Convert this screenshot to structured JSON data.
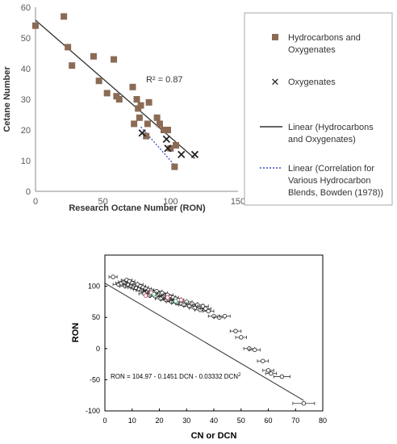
{
  "chart_data": [
    {
      "type": "scatter",
      "xlabel": "Research Octane Number (RON)",
      "ylabel": "Cetane Number",
      "xlim": [
        0,
        150
      ],
      "ylim": [
        0,
        60
      ],
      "xticks": [
        "0",
        "50",
        "100",
        "150"
      ],
      "yticks": [
        "0",
        "10",
        "20",
        "30",
        "40",
        "50",
        "60"
      ],
      "grid": false,
      "legend_position": "right",
      "annotation": "R² = 0.87",
      "series": [
        {
          "name": "Hydrocarbons and Oxygenates",
          "marker": "square",
          "color": "#8B6B55",
          "x": [
            0,
            21,
            24,
            27,
            43,
            47,
            53,
            58,
            60,
            62,
            72,
            73,
            75,
            76,
            77,
            78,
            82,
            83,
            84,
            90,
            92,
            95,
            98,
            100,
            103,
            104
          ],
          "y": [
            54,
            57,
            47,
            41,
            44,
            36,
            32,
            43,
            31,
            30,
            34,
            22,
            30,
            27,
            24,
            28,
            18,
            22,
            29,
            24,
            22,
            20,
            20,
            14,
            8,
            15
          ]
        },
        {
          "name": "Oxygenates",
          "marker": "x",
          "color": "#222222",
          "x": [
            79,
            97,
            98,
            108,
            118
          ],
          "y": [
            19,
            17,
            14,
            12,
            12
          ]
        },
        {
          "name": "Linear (Hydrocarbons and Oxygenates)",
          "type": "line",
          "color": "#333333",
          "x": [
            0,
            118
          ],
          "y": [
            55.8,
            10.7
          ]
        },
        {
          "name": "Linear (Correlation for Various Hydrocarbon Blends, Bowden (1978))",
          "type": "line",
          "style": "dotted",
          "color": "#3B4FC2",
          "x": [
            78,
            103
          ],
          "y": [
            21,
            8.5
          ]
        }
      ]
    },
    {
      "type": "scatter",
      "xlabel": "CN or DCN",
      "ylabel": "RON",
      "xlim": [
        0,
        80
      ],
      "ylim": [
        -100,
        150
      ],
      "xticks": [
        "0",
        "10",
        "20",
        "30",
        "40",
        "50",
        "60",
        "70",
        "80"
      ],
      "yticks": [
        "-100",
        "-50",
        "0",
        "50",
        "100"
      ],
      "grid": false,
      "annotation_text": "RON = 104.97 - 0.1451 DCN - 0.03332 DCN",
      "annotation_superscript": "2",
      "series": [
        {
          "marker": "open-circle",
          "color": "#333333",
          "x": [
            3,
            5,
            6,
            7,
            7.5,
            8,
            8.5,
            9,
            9.5,
            10,
            10.5,
            11,
            11.5,
            12,
            12.5,
            13,
            13.5,
            14,
            14.5,
            15,
            15.5,
            16,
            16.5,
            17,
            17.5,
            18,
            18.5,
            19,
            19.5,
            20,
            20.5,
            21,
            21.5,
            22,
            22.5,
            23,
            23.5,
            24,
            24.5,
            25,
            25.5,
            26,
            26.5,
            27,
            28,
            29,
            30,
            31,
            32,
            33,
            34,
            35,
            36,
            37,
            38,
            40,
            42,
            44,
            48,
            50,
            53,
            55,
            58,
            60,
            61,
            65,
            73
          ],
          "y": [
            115,
            103,
            105,
            107,
            100,
            110,
            103,
            108,
            100,
            105,
            98,
            102,
            97,
            103,
            95,
            100,
            93,
            98,
            88,
            96,
            92,
            94,
            85,
            93,
            88,
            90,
            84,
            92,
            86,
            88,
            80,
            89,
            84,
            85,
            78,
            86,
            79,
            83,
            75,
            82,
            77,
            80,
            73,
            78,
            72,
            70,
            75,
            68,
            72,
            65,
            70,
            62,
            68,
            64,
            60,
            52,
            50,
            52,
            28,
            18,
            0,
            -2,
            -20,
            -35,
            -40,
            -45,
            -88
          ],
          "xerr": [
            1.5,
            2,
            2,
            2,
            2,
            2,
            2,
            2,
            2,
            2,
            2,
            2,
            2,
            2,
            2,
            2,
            2,
            2,
            2,
            2,
            2,
            2,
            2,
            2,
            2,
            2,
            2,
            2,
            2,
            2,
            2,
            2,
            2,
            2,
            2,
            2,
            2,
            2,
            2,
            2,
            2,
            2,
            2,
            2,
            2,
            2,
            2,
            2,
            2,
            2,
            2,
            2,
            2,
            2,
            2,
            2,
            2,
            2,
            2,
            2,
            2,
            2,
            2,
            2,
            2,
            3,
            4
          ]
        },
        {
          "marker": "open-circle",
          "color": "#D24A6A",
          "x": [
            15,
            17,
            23,
            28
          ],
          "y": [
            85,
            90,
            82,
            78
          ]
        },
        {
          "marker": "open-circle",
          "color": "#2EA36A",
          "x": [
            18,
            26
          ],
          "y": [
            87,
            76
          ]
        },
        {
          "type": "line",
          "color": "#333333",
          "x": [
            0,
            73
          ],
          "y": [
            104.97,
            -83.2
          ]
        }
      ]
    }
  ]
}
